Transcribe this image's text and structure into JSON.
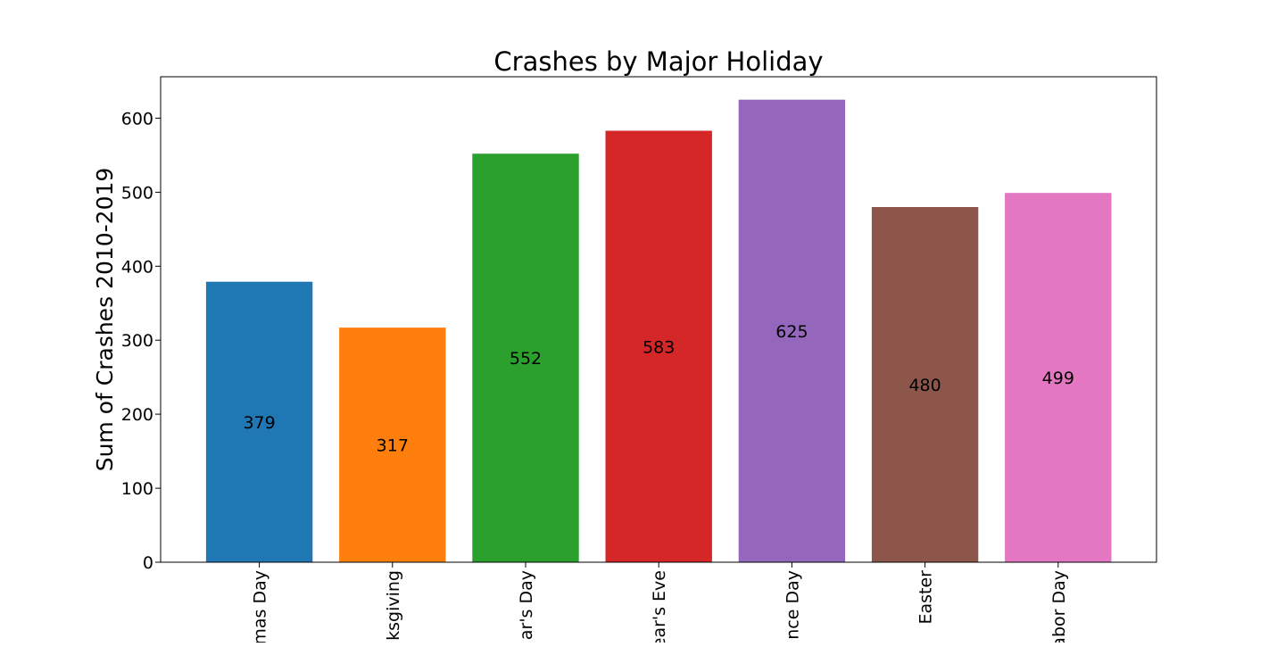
{
  "chart_data": {
    "type": "bar",
    "title": "Crashes by Major Holiday",
    "xlabel": "",
    "ylabel": "Sum of Crashes 2010-2019",
    "categories": [
      "Christmas Day",
      "Thanksgiving",
      "New Year's Day",
      "New Year's Eve",
      "Independence Day",
      "Easter",
      "Labor Day"
    ],
    "category_labels_visible": [
      "mas Day",
      "ksgiving",
      "ar's Day",
      "ear's Eve",
      "nce Day",
      "Easter",
      "abor Day"
    ],
    "values": [
      379,
      317,
      552,
      583,
      625,
      480,
      499
    ],
    "data_labels": [
      "379",
      "317",
      "552",
      "583",
      "625",
      "480",
      "499"
    ],
    "colors": [
      "#1f77b4",
      "#ff7f0e",
      "#2ca02c",
      "#d62728",
      "#9467bd",
      "#8c564b",
      "#e377c2"
    ],
    "ylim": [
      0,
      656
    ],
    "yticks": [
      0,
      100,
      200,
      300,
      400,
      500,
      600
    ],
    "ytick_labels": [
      "0",
      "100",
      "200",
      "300",
      "400",
      "500",
      "600"
    ],
    "grid": false,
    "legend": "none"
  }
}
